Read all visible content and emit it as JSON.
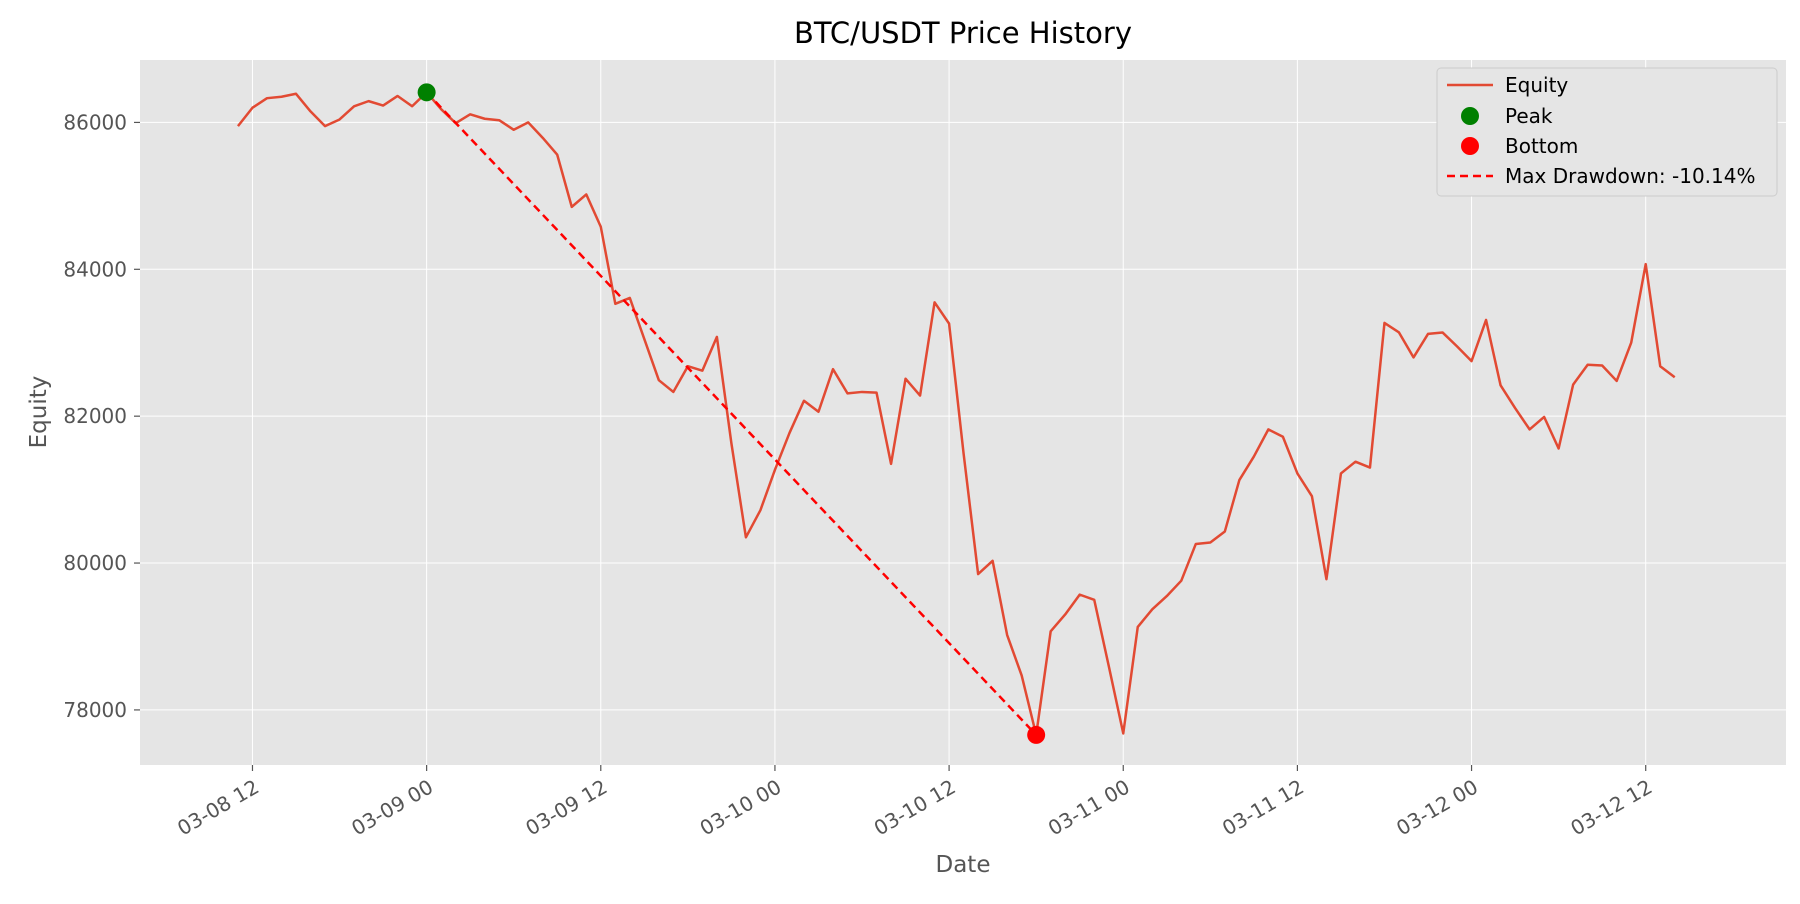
{
  "chart_data": {
    "type": "line",
    "title": "BTC/USDT Price History",
    "xlabel": "Date",
    "ylabel": "Equity",
    "grid": true,
    "legend_position": "top-right",
    "colors": {
      "plot_background": "#e5e5e5",
      "grid": "#ffffff",
      "equity": "#e24a33",
      "peak": "#008000",
      "bottom": "#ff0000",
      "drawdown": "#ff0000"
    },
    "xlim": [
      "2025-03-08 04:15",
      "2025-03-12 21:40"
    ],
    "ylim": [
      77250,
      86850
    ],
    "x_ticks": [
      {
        "x": "2025-03-08 12:00",
        "label": "03-08 12"
      },
      {
        "x": "2025-03-09 00:00",
        "label": "03-09 00"
      },
      {
        "x": "2025-03-09 12:00",
        "label": "03-09 12"
      },
      {
        "x": "2025-03-10 00:00",
        "label": "03-10 00"
      },
      {
        "x": "2025-03-10 12:00",
        "label": "03-10 12"
      },
      {
        "x": "2025-03-11 00:00",
        "label": "03-11 00"
      },
      {
        "x": "2025-03-11 12:00",
        "label": "03-11 12"
      },
      {
        "x": "2025-03-12 00:00",
        "label": "03-12 00"
      },
      {
        "x": "2025-03-12 12:00",
        "label": "03-12 12"
      }
    ],
    "y_ticks": [
      {
        "y": 78000,
        "label": "78000"
      },
      {
        "y": 80000,
        "label": "80000"
      },
      {
        "y": 82000,
        "label": "82000"
      },
      {
        "y": 84000,
        "label": "84000"
      },
      {
        "y": 86000,
        "label": "86000"
      }
    ],
    "series": [
      {
        "name": "Equity",
        "x": [
          "2025-03-08 11:00",
          "2025-03-08 12:00",
          "2025-03-08 13:00",
          "2025-03-08 14:00",
          "2025-03-08 15:00",
          "2025-03-08 16:00",
          "2025-03-08 17:00",
          "2025-03-08 18:00",
          "2025-03-08 19:00",
          "2025-03-08 20:00",
          "2025-03-08 21:00",
          "2025-03-08 22:00",
          "2025-03-08 23:00",
          "2025-03-09 00:00",
          "2025-03-09 01:00",
          "2025-03-09 02:00",
          "2025-03-09 03:00",
          "2025-03-09 04:00",
          "2025-03-09 05:00",
          "2025-03-09 06:00",
          "2025-03-09 07:00",
          "2025-03-09 08:00",
          "2025-03-09 09:00",
          "2025-03-09 10:00",
          "2025-03-09 11:00",
          "2025-03-09 12:00",
          "2025-03-09 13:00",
          "2025-03-09 14:00",
          "2025-03-09 15:00",
          "2025-03-09 16:00",
          "2025-03-09 17:00",
          "2025-03-09 18:00",
          "2025-03-09 19:00",
          "2025-03-09 20:00",
          "2025-03-09 21:00",
          "2025-03-09 22:00",
          "2025-03-09 23:00",
          "2025-03-10 00:00",
          "2025-03-10 01:00",
          "2025-03-10 02:00",
          "2025-03-10 03:00",
          "2025-03-10 04:00",
          "2025-03-10 05:00",
          "2025-03-10 06:00",
          "2025-03-10 07:00",
          "2025-03-10 08:00",
          "2025-03-10 09:00",
          "2025-03-10 10:00",
          "2025-03-10 11:00",
          "2025-03-10 12:00",
          "2025-03-10 13:00",
          "2025-03-10 14:00",
          "2025-03-10 15:00",
          "2025-03-10 16:00",
          "2025-03-10 17:00",
          "2025-03-10 18:00",
          "2025-03-10 19:00",
          "2025-03-10 20:00",
          "2025-03-10 21:00",
          "2025-03-10 22:00",
          "2025-03-10 23:00",
          "2025-03-11 00:00",
          "2025-03-11 01:00",
          "2025-03-11 02:00",
          "2025-03-11 03:00",
          "2025-03-11 04:00",
          "2025-03-11 05:00",
          "2025-03-11 06:00",
          "2025-03-11 07:00",
          "2025-03-11 08:00",
          "2025-03-11 09:00",
          "2025-03-11 10:00",
          "2025-03-11 11:00",
          "2025-03-11 12:00",
          "2025-03-11 13:00",
          "2025-03-11 14:00",
          "2025-03-11 15:00",
          "2025-03-11 16:00",
          "2025-03-11 17:00",
          "2025-03-11 18:00",
          "2025-03-11 19:00",
          "2025-03-11 20:00",
          "2025-03-11 21:00",
          "2025-03-11 22:00",
          "2025-03-11 23:00",
          "2025-03-12 00:00",
          "2025-03-12 01:00",
          "2025-03-12 02:00",
          "2025-03-12 03:00",
          "2025-03-12 04:00",
          "2025-03-12 05:00",
          "2025-03-12 06:00",
          "2025-03-12 07:00",
          "2025-03-12 08:00",
          "2025-03-12 09:00",
          "2025-03-12 10:00",
          "2025-03-12 11:00",
          "2025-03-12 12:00",
          "2025-03-12 13:00",
          "2025-03-12 14:00"
        ],
        "y": [
          85950,
          86200,
          86330,
          86350,
          86390,
          86150,
          85950,
          86040,
          86220,
          86290,
          86230,
          86360,
          86220,
          86410,
          86180,
          85990,
          86110,
          86050,
          86030,
          85900,
          86000,
          85790,
          85560,
          84850,
          85020,
          84580,
          83530,
          83610,
          83050,
          82490,
          82330,
          82680,
          82620,
          83080,
          81630,
          80350,
          80720,
          81270,
          81770,
          82210,
          82060,
          82640,
          82310,
          82330,
          82320,
          81350,
          82510,
          82280,
          83550,
          83260,
          81490,
          79850,
          80030,
          79020,
          78470,
          77660,
          79070,
          79300,
          79570,
          79500,
          78600,
          77680,
          79130,
          79370,
          79550,
          79760,
          80260,
          80280,
          80430,
          81130,
          81450,
          81820,
          81720,
          81220,
          80910,
          79780,
          81220,
          81380,
          81300,
          83270,
          83140,
          82800,
          83120,
          83140,
          82950,
          82750,
          83310,
          82420,
          82110,
          81820,
          81990,
          81560,
          82430,
          82700,
          82690,
          82480,
          83000,
          84070,
          82680,
          82530
        ]
      }
    ],
    "peak": {
      "name": "Peak",
      "x": "2025-03-09 00:00",
      "y": 86410
    },
    "bottom": {
      "name": "Bottom",
      "x": "2025-03-10 18:00",
      "y": 77660
    },
    "drawdown_line": {
      "name": "Max Drawdown: -10.14%",
      "value_pct": -10.14
    },
    "legend": [
      {
        "label": "Equity",
        "kind": "line"
      },
      {
        "label": "Peak",
        "kind": "peak-marker"
      },
      {
        "label": "Bottom",
        "kind": "bottom-marker"
      },
      {
        "label": "Max Drawdown: -10.14%",
        "kind": "dashed-line"
      }
    ]
  }
}
